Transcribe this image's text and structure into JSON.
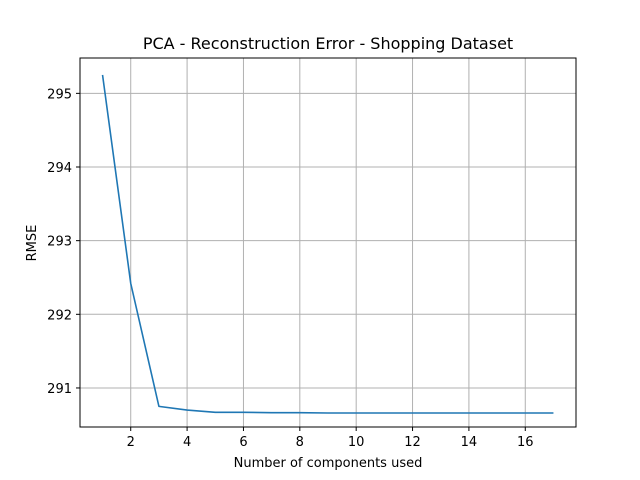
{
  "chart_data": {
    "type": "line",
    "title": "PCA - Reconstruction Error - Shopping Dataset",
    "xlabel": "Number of components used",
    "ylabel": "RMSE",
    "xlim": [
      0.2,
      17.8
    ],
    "ylim": [
      290.47,
      295.48
    ],
    "xticks": [
      2,
      4,
      6,
      8,
      10,
      12,
      14,
      16
    ],
    "yticks": [
      291,
      292,
      293,
      294,
      295
    ],
    "grid": true,
    "series": [
      {
        "color": "#1f77b4",
        "x": [
          1,
          2,
          3,
          4,
          5,
          6,
          7,
          8,
          9,
          10,
          11,
          12,
          13,
          14,
          15,
          16,
          17
        ],
        "y": [
          295.25,
          292.42,
          290.75,
          290.7,
          290.67,
          290.67,
          290.665,
          290.665,
          290.66,
          290.66,
          290.66,
          290.66,
          290.66,
          290.66,
          290.66,
          290.66,
          290.66
        ]
      }
    ]
  }
}
